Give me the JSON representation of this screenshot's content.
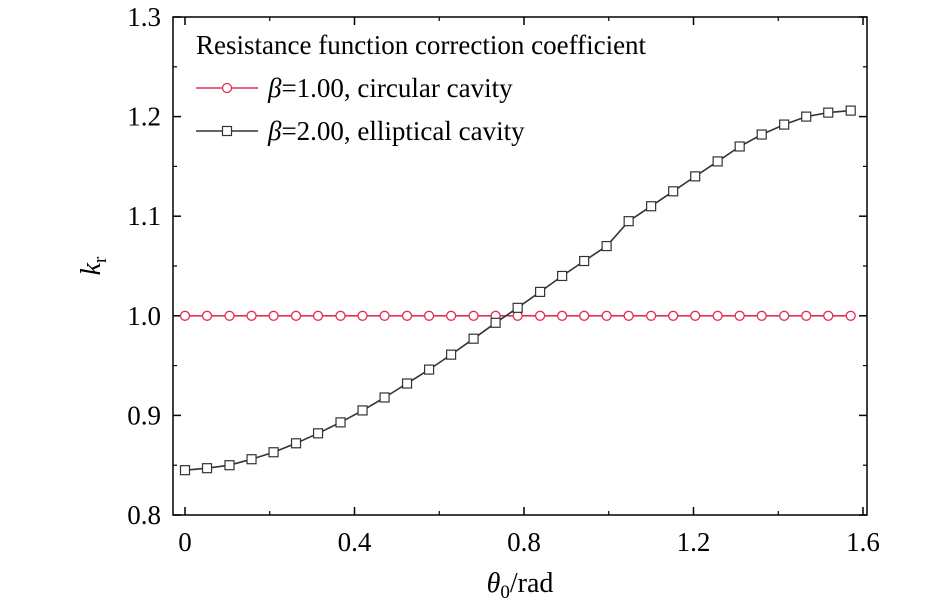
{
  "chart_data": {
    "type": "line",
    "legend_title": "Resistance function correction coefficient",
    "legend_position": "top-left",
    "xlabel": {
      "symbol": "θ",
      "subscript": "0",
      "unit": "/rad"
    },
    "ylabel": {
      "symbol": "k",
      "subscript": "r"
    },
    "xlim": [
      0,
      1.6
    ],
    "ylim": [
      0.8,
      1.3
    ],
    "x_ticks": [
      "0",
      "0.4",
      "0.8",
      "1.2",
      "1.6"
    ],
    "y_ticks": [
      "0.8",
      "0.9",
      "1.0",
      "1.1",
      "1.2",
      "1.3"
    ],
    "x_tick_values": [
      0,
      0.4,
      0.8,
      1.2,
      1.6
    ],
    "y_tick_values": [
      0.8,
      0.9,
      1.0,
      1.1,
      1.2,
      1.3
    ],
    "grid": false,
    "series": [
      {
        "name_symbol": "β",
        "name_rest": "=1.00, circular cavity",
        "color": "#e0305a",
        "marker": "circle",
        "x": [
          0.0,
          0.052,
          0.105,
          0.157,
          0.209,
          0.262,
          0.314,
          0.367,
          0.419,
          0.471,
          0.524,
          0.576,
          0.628,
          0.681,
          0.733,
          0.785,
          0.838,
          0.89,
          0.942,
          0.995,
          1.047,
          1.1,
          1.152,
          1.204,
          1.257,
          1.309,
          1.361,
          1.414,
          1.466,
          1.518,
          1.571
        ],
        "y": [
          1.0,
          1.0,
          1.0,
          1.0,
          1.0,
          1.0,
          1.0,
          1.0,
          1.0,
          1.0,
          1.0,
          1.0,
          1.0,
          1.0,
          1.0,
          1.0,
          1.0,
          1.0,
          1.0,
          1.0,
          1.0,
          1.0,
          1.0,
          1.0,
          1.0,
          1.0,
          1.0,
          1.0,
          1.0,
          1.0,
          1.0
        ]
      },
      {
        "name_symbol": "β",
        "name_rest": "=2.00, elliptical cavity",
        "color": "#333333",
        "marker": "square",
        "x": [
          0.0,
          0.052,
          0.105,
          0.157,
          0.209,
          0.262,
          0.314,
          0.367,
          0.419,
          0.471,
          0.524,
          0.576,
          0.628,
          0.681,
          0.733,
          0.785,
          0.838,
          0.89,
          0.942,
          0.995,
          1.047,
          1.1,
          1.152,
          1.204,
          1.257,
          1.309,
          1.361,
          1.414,
          1.466,
          1.518,
          1.571
        ],
        "y": [
          0.845,
          0.847,
          0.85,
          0.856,
          0.863,
          0.872,
          0.882,
          0.893,
          0.905,
          0.918,
          0.932,
          0.946,
          0.961,
          0.977,
          0.993,
          1.008,
          1.024,
          1.04,
          1.055,
          1.07,
          1.095,
          1.11,
          1.125,
          1.14,
          1.155,
          1.17,
          1.182,
          1.192,
          1.2,
          1.204,
          1.206
        ]
      }
    ]
  }
}
